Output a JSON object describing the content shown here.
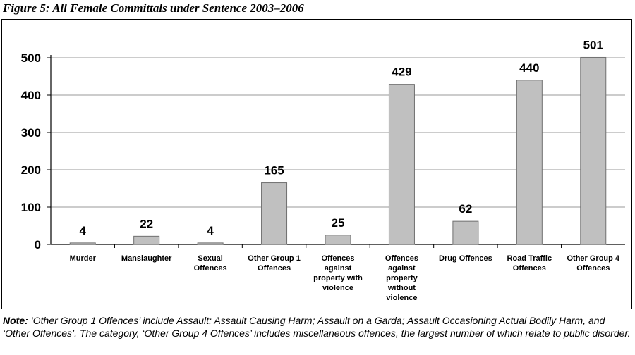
{
  "figure_title": "Figure 5: All Female Committals under Sentence 2003–2006",
  "note": {
    "label": "Note:",
    "text": " ‘Other Group 1 Offences’ include Assault; Assault Causing Harm; Assault on a Garda; Assault Occasioning Actual Bodily Harm, and ‘Other Offences’. The category, ‘Other Group 4 Offences’ includes miscellaneous offences, the largest number of which relate to public disorder."
  },
  "chart_data": {
    "type": "bar",
    "title": "",
    "xlabel": "",
    "ylabel": "",
    "ylim": [
      0,
      500
    ],
    "yticks": [
      0,
      100,
      200,
      300,
      400,
      500
    ],
    "grid": true,
    "categories": [
      [
        "Murder"
      ],
      [
        "Manslaughter"
      ],
      [
        "Sexual",
        "Offences"
      ],
      [
        "Other Group 1",
        "Offences"
      ],
      [
        "Offences",
        "against",
        "property with",
        "violence"
      ],
      [
        "Offences",
        "against",
        "property",
        "without",
        "violence"
      ],
      [
        "Drug Offences"
      ],
      [
        "Road Traffic",
        "Offences"
      ],
      [
        "Other Group 4",
        "Offences"
      ]
    ],
    "values": [
      4,
      22,
      4,
      165,
      25,
      429,
      62,
      440,
      501
    ],
    "data_labels": [
      "4",
      "22",
      "4",
      "165",
      "25",
      "429",
      "62",
      "440",
      "501"
    ],
    "colors": {
      "bar": "#c0c0c0",
      "bar_stroke": "#6f6f6f",
      "grid": "#9a9a9a"
    }
  }
}
